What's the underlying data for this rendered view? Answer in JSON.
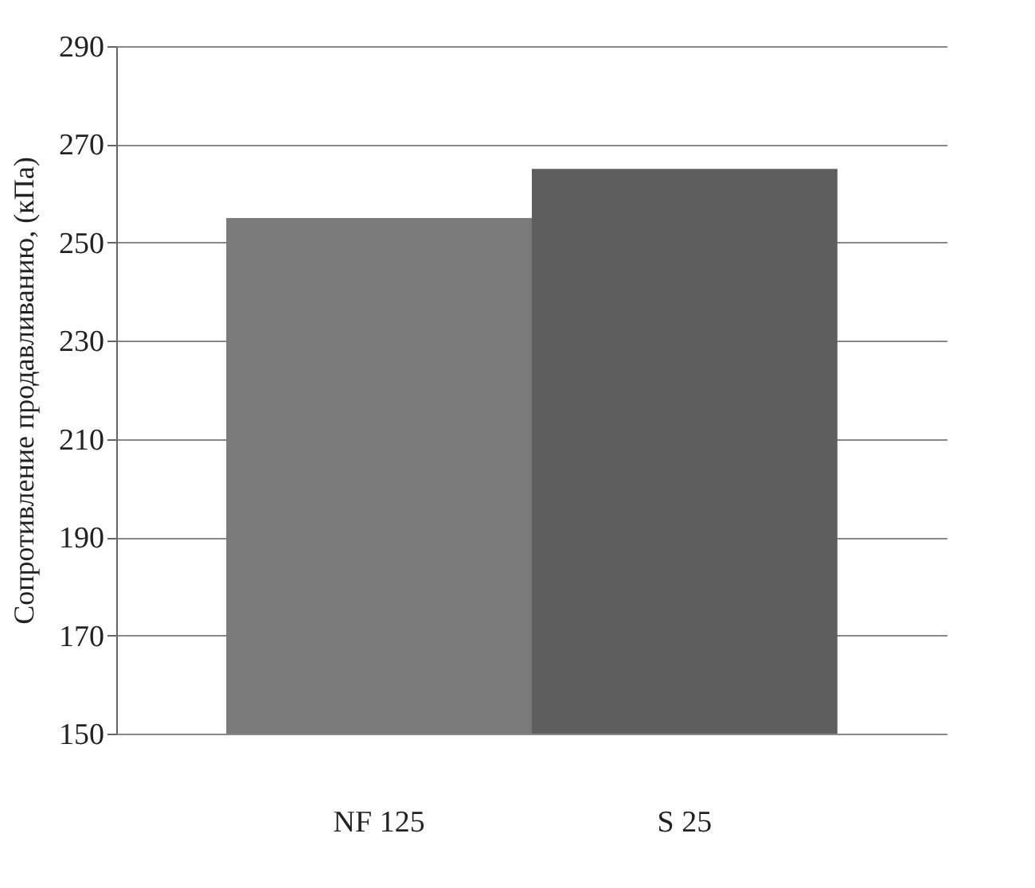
{
  "chart_data": {
    "type": "bar",
    "ylabel": "Сопротивление продавливанию, (кПа)",
    "categories": [
      "NF 125",
      "S 25"
    ],
    "values": [
      255,
      265
    ],
    "colors": [
      "#7a7a7a",
      "#5e5e5e"
    ],
    "ylim": [
      150,
      290
    ],
    "yticks": [
      150,
      170,
      190,
      210,
      230,
      250,
      270,
      290
    ],
    "grid": "y"
  }
}
